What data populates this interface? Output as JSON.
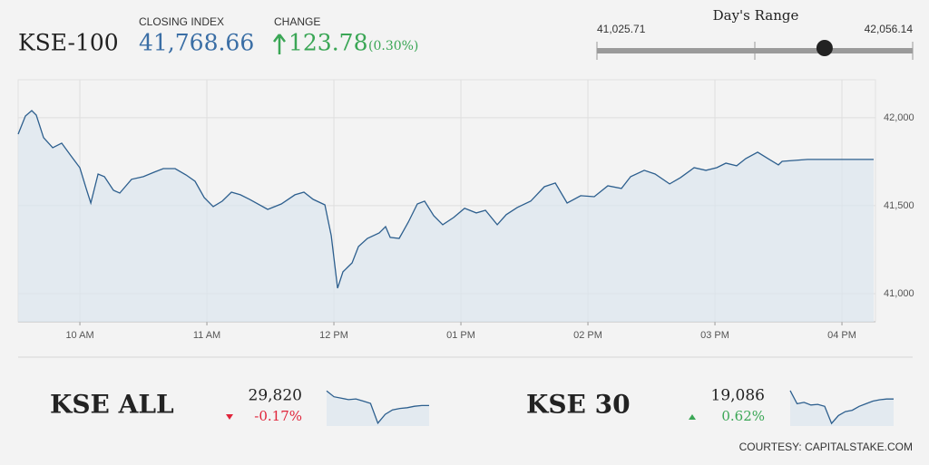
{
  "header": {
    "name": "KSE-100",
    "closing_label": "CLOSING INDEX",
    "closing": {
      "value": 41768.66,
      "label": "41,768.66"
    },
    "change_label": "CHANGE",
    "change": "123.78",
    "change_pct": "(0.30%)"
  },
  "days_range": {
    "title": "Day's Range",
    "low": {
      "value": 41025.71,
      "label": "41,025.71"
    },
    "high": {
      "value": 42056.14,
      "label": "42,056.14"
    }
  },
  "chart_data": [
    {
      "type": "line",
      "color": "#2d5f8e",
      "fill": "#dbe5ee",
      "x": [
        9.514,
        9.571,
        9.621,
        9.657,
        9.714,
        9.786,
        9.857,
        9.929,
        10,
        10.05,
        10.086,
        10.143,
        10.193,
        10.264,
        10.314,
        10.407,
        10.5,
        10.586,
        10.657,
        10.75,
        10.836,
        10.907,
        10.979,
        11.05,
        11.121,
        11.193,
        11.264,
        11.336,
        11.479,
        11.586,
        11.693,
        11.764,
        11.836,
        11.929,
        11.979,
        12.029,
        12.071,
        12.143,
        12.193,
        12.264,
        12.357,
        12.407,
        12.443,
        12.514,
        12.586,
        12.657,
        12.714,
        12.786,
        12.857,
        12.943,
        13.029,
        13.121,
        13.193,
        13.286,
        13.357,
        13.443,
        13.55,
        13.657,
        13.743,
        13.836,
        13.943,
        14.05,
        14.157,
        14.264,
        14.336,
        14.443,
        14.529,
        14.643,
        14.729,
        14.836,
        14.929,
        15.014,
        15.086,
        15.171,
        15.243,
        15.336,
        15.429,
        15.5,
        15.529,
        15.729,
        16.25
      ],
      "values": [
        41907,
        42010,
        42041,
        42015,
        41887,
        41830,
        41856,
        41784,
        41716,
        41598,
        41515,
        41680,
        41665,
        41588,
        41572,
        41650,
        41665,
        41691,
        41711,
        41711,
        41675,
        41639,
        41546,
        41495,
        41526,
        41577,
        41562,
        41536,
        41479,
        41510,
        41562,
        41577,
        41536,
        41505,
        41330,
        41031,
        41124,
        41175,
        41268,
        41314,
        41345,
        41381,
        41320,
        41314,
        41407,
        41510,
        41526,
        41443,
        41392,
        41433,
        41485,
        41459,
        41474,
        41392,
        41449,
        41490,
        41526,
        41608,
        41629,
        41515,
        41557,
        41551,
        41613,
        41598,
        41665,
        41701,
        41680,
        41624,
        41660,
        41716,
        41701,
        41716,
        41742,
        41727,
        41768,
        41804,
        41763,
        41732,
        41752,
        41763,
        41763
      ],
      "xlim": [
        9.514,
        16.264
      ],
      "ylim": [
        40840,
        42216
      ],
      "xticks": [
        {
          "value": 10,
          "label": "10 AM"
        },
        {
          "value": 11,
          "label": "11 AM"
        },
        {
          "value": 12,
          "label": "12 PM"
        },
        {
          "value": 13,
          "label": "01 PM"
        },
        {
          "value": 14,
          "label": "02 PM"
        },
        {
          "value": 15,
          "label": "03 PM"
        },
        {
          "value": 16,
          "label": "04 PM"
        }
      ],
      "yticks": [
        {
          "value": 41000,
          "label": "41,000"
        },
        {
          "value": 41500,
          "label": "41,500"
        },
        {
          "value": 42000,
          "label": "42,000"
        }
      ],
      "grid": true
    },
    {
      "type": "line",
      "color": "#2d5f8e",
      "fill": "#dbe5ee",
      "values": [
        29920,
        29880,
        29870,
        29860,
        29865,
        29850,
        29835,
        29700,
        29760,
        29790,
        29800,
        29805,
        29815,
        29820,
        29820
      ],
      "ylim": [
        29680,
        29940
      ]
    },
    {
      "type": "line",
      "color": "#2d5f8e",
      "fill": "#dbe5ee",
      "values": [
        19150,
        19050,
        19060,
        19040,
        19045,
        19030,
        18900,
        18960,
        18990,
        19000,
        19030,
        19050,
        19070,
        19080,
        19086,
        19086
      ],
      "ylim": [
        18880,
        19170
      ]
    }
  ],
  "indices": [
    {
      "name": "KSE ALL",
      "value": "29,820",
      "change": "-0.17%",
      "direction": "down"
    },
    {
      "name": "KSE 30",
      "value": "19,086",
      "change": "0.62%",
      "direction": "up"
    }
  ],
  "footer": "COURTESY: CAPITALSTAKE.COM"
}
